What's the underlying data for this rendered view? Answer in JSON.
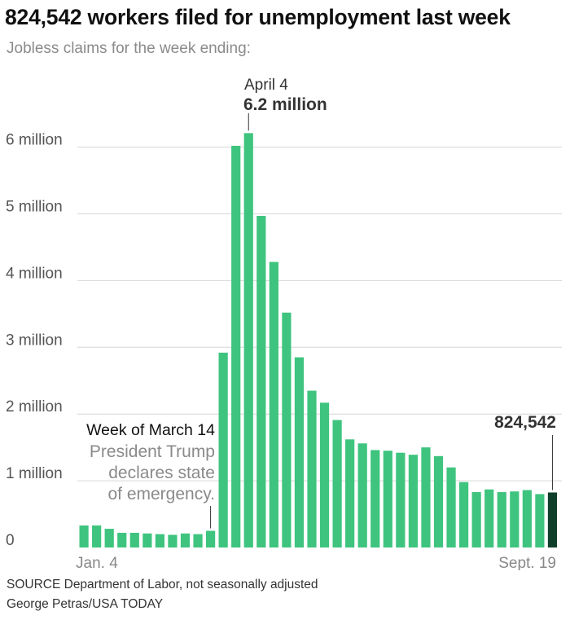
{
  "header": {
    "title": "824,542 workers filed for unemployment last week",
    "subtitle": "Jobless claims for the week ending:"
  },
  "footer": {
    "source": "SOURCE Department of Labor, not seasonally adjusted",
    "credit": "George Petras/USA TODAY"
  },
  "colors": {
    "bar": "#3ec47e",
    "highlight_bar": "#0f3f2a",
    "grid": "#d6d6d6",
    "annotation_line": "#333333"
  },
  "chart_data": {
    "type": "bar",
    "title": "824,542 workers filed for unemployment last week",
    "subtitle": "Jobless claims for the week ending:",
    "x_tick_labels": [
      "Jan. 4",
      "Sept. 19"
    ],
    "y_tick_labels": [
      "0",
      "1 million",
      "2 million",
      "3 million",
      "4 million",
      "5 million",
      "6 million"
    ],
    "y_tick_values": [
      0,
      1000000,
      2000000,
      3000000,
      4000000,
      5000000,
      6000000
    ],
    "ylim": [
      0,
      6400000
    ],
    "grid": true,
    "values": [
      330000,
      330000,
      280000,
      220000,
      220000,
      210000,
      200000,
      190000,
      210000,
      200000,
      250000,
      2920000,
      6020000,
      6210000,
      4970000,
      4280000,
      3520000,
      2850000,
      2350000,
      2170000,
      1910000,
      1620000,
      1560000,
      1460000,
      1450000,
      1420000,
      1390000,
      1500000,
      1370000,
      1200000,
      980000,
      830000,
      870000,
      830000,
      840000,
      860000,
      800000,
      824542
    ],
    "highlight_index": 37,
    "annotations": [
      {
        "bar_index": 13,
        "date": "April 4",
        "value_label": "6.2 million"
      },
      {
        "bar_index": 10,
        "heading": "Week of March 14",
        "lines": [
          "President Trump",
          "declares state",
          "of emergency."
        ]
      },
      {
        "bar_index": 37,
        "value_label": "824,542"
      }
    ]
  }
}
